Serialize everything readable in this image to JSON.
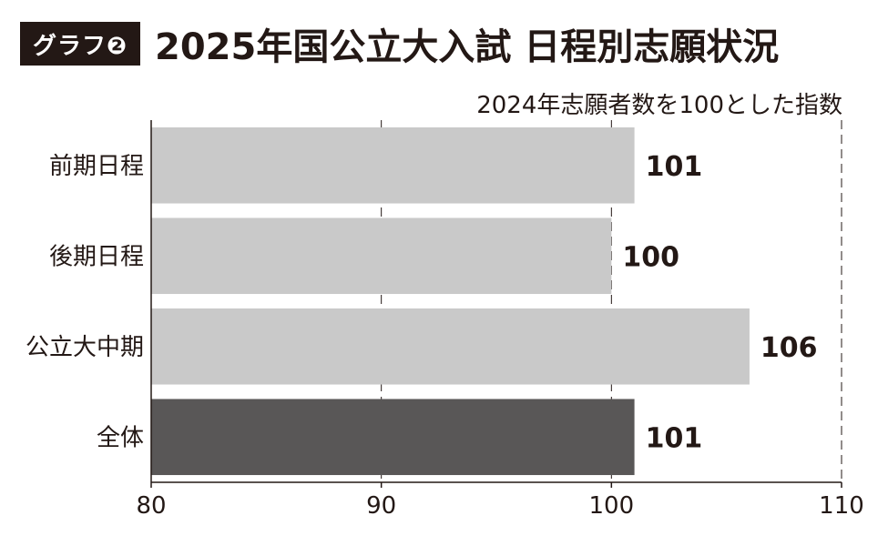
{
  "header": {
    "badge": "グラフ❷",
    "title": "2025年国公立大入試 日程別志願状況",
    "subtitle": "2024年志願者数を100とした指数"
  },
  "chart_data": {
    "type": "bar",
    "orientation": "horizontal",
    "title": "2025年国公立大入試 日程別志願状況",
    "subtitle": "2024年志願者数を100とした指数",
    "categories": [
      "前期日程",
      "後期日程",
      "公立大中期",
      "全体"
    ],
    "values": [
      101,
      100,
      106,
      101
    ],
    "value_labels": [
      "101",
      "100",
      "106",
      "101"
    ],
    "xlim": [
      80,
      110
    ],
    "xticks": [
      80,
      90,
      100,
      110
    ],
    "xtick_labels": [
      "80",
      "90",
      "100",
      "110"
    ],
    "grid": "vertical dashed",
    "colors": {
      "default_bar": "#c9c9c9",
      "highlight_bar": "#595757",
      "text": "#231815"
    },
    "highlight_category": "全体"
  }
}
